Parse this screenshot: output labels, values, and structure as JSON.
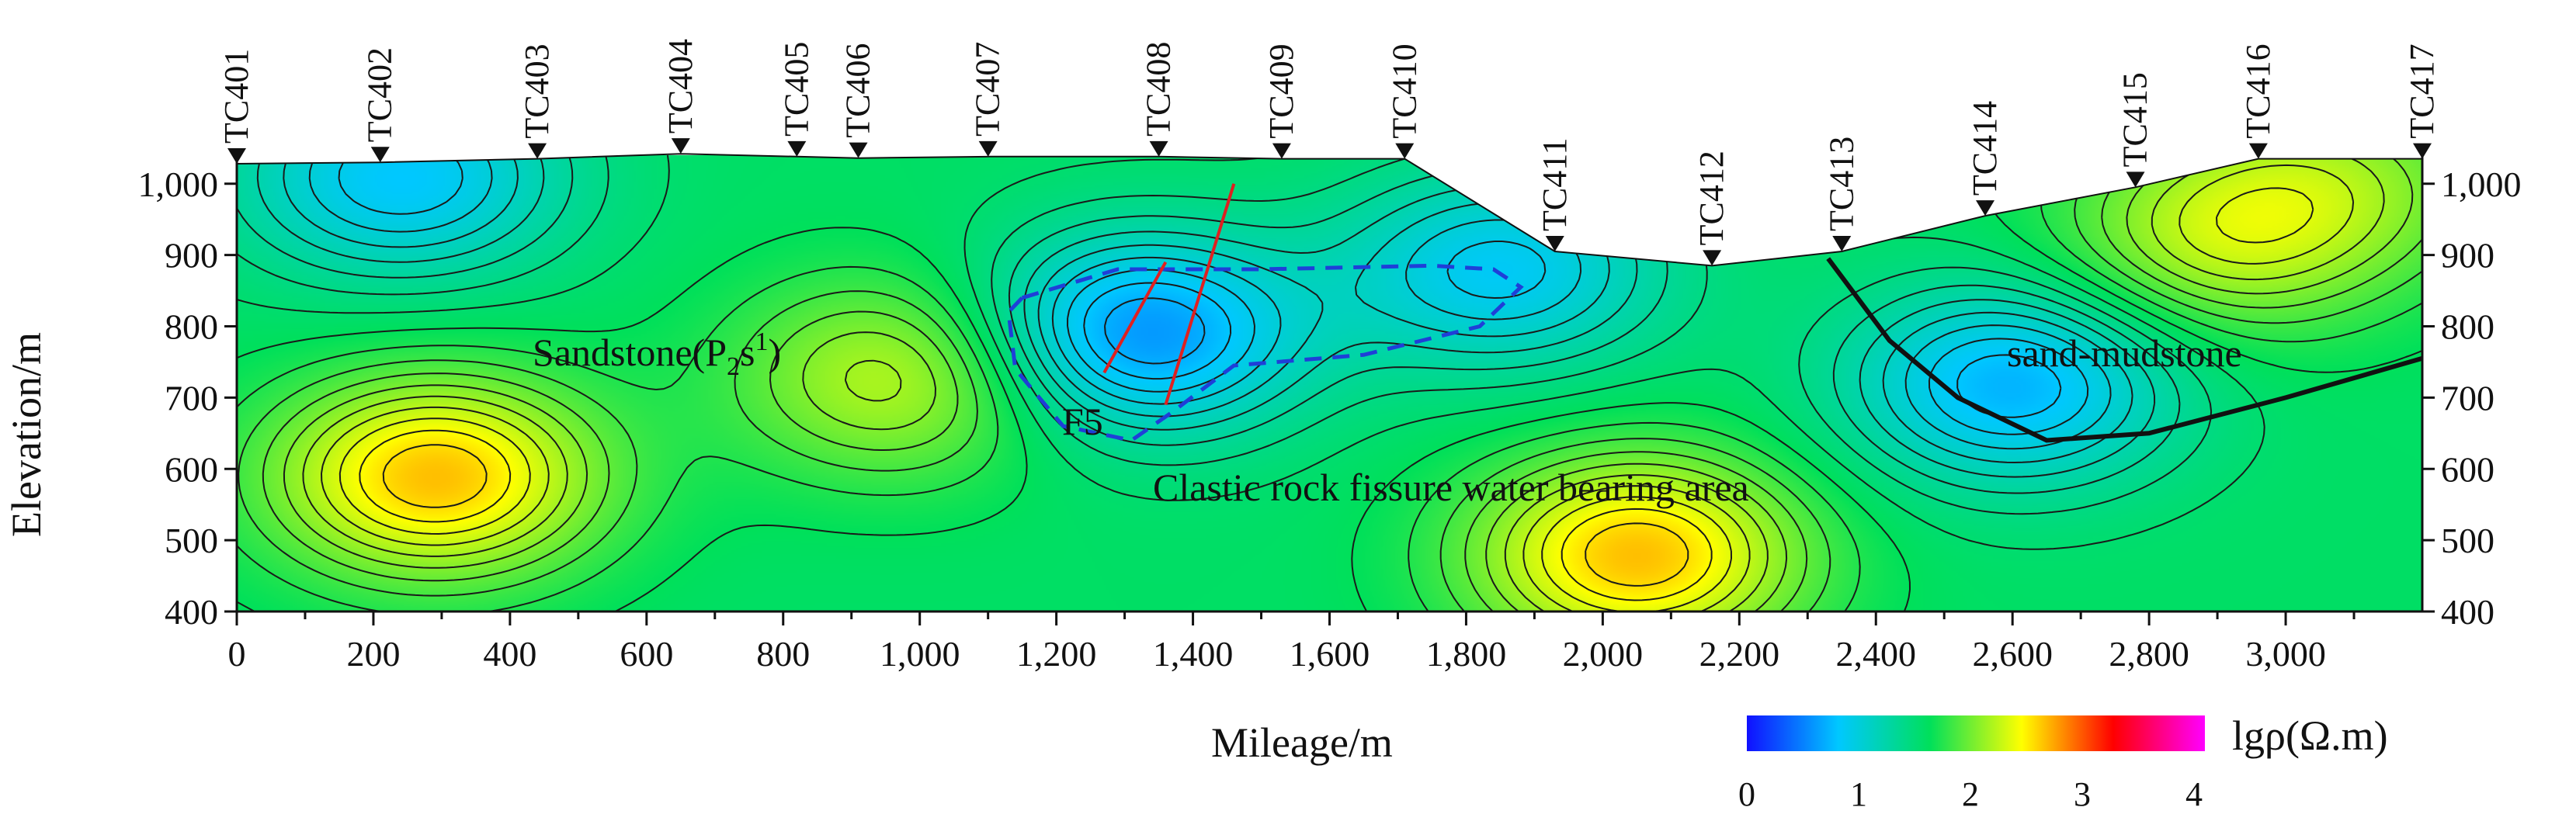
{
  "chart_data": {
    "type": "heatmap",
    "xlabel": "Mileage/m",
    "ylabel": "Elevation/m",
    "xlim": [
      0,
      3200
    ],
    "ylim": [
      400,
      1040
    ],
    "x_ticks": [
      0,
      200,
      400,
      600,
      800,
      1000,
      1200,
      1400,
      1600,
      1800,
      2000,
      2200,
      2400,
      2600,
      2800,
      3000
    ],
    "x_tick_labels": [
      "0",
      "200",
      "400",
      "600",
      "800",
      "1,000",
      "1,200",
      "1,400",
      "1,600",
      "1,800",
      "2,000",
      "2,200",
      "2,400",
      "2,600",
      "2,800",
      "3,000"
    ],
    "y_ticks": [
      400,
      500,
      600,
      700,
      800,
      900,
      1000
    ],
    "y_tick_labels": [
      "400",
      "500",
      "600",
      "700",
      "800",
      "900",
      "1,000"
    ],
    "stations": [
      {
        "name": "TC401",
        "x": 0,
        "elev": 1028
      },
      {
        "name": "TC402",
        "x": 210,
        "elev": 1030
      },
      {
        "name": "TC403",
        "x": 440,
        "elev": 1035
      },
      {
        "name": "TC404",
        "x": 650,
        "elev": 1042
      },
      {
        "name": "TC405",
        "x": 820,
        "elev": 1038
      },
      {
        "name": "TC406",
        "x": 910,
        "elev": 1036
      },
      {
        "name": "TC407",
        "x": 1100,
        "elev": 1038
      },
      {
        "name": "TC408",
        "x": 1350,
        "elev": 1038
      },
      {
        "name": "TC409",
        "x": 1530,
        "elev": 1035
      },
      {
        "name": "TC410",
        "x": 1710,
        "elev": 1035
      },
      {
        "name": "TC411",
        "x": 1930,
        "elev": 905
      },
      {
        "name": "TC412",
        "x": 2160,
        "elev": 885
      },
      {
        "name": "TC413",
        "x": 2350,
        "elev": 905
      },
      {
        "name": "TC414",
        "x": 2560,
        "elev": 955
      },
      {
        "name": "TC415",
        "x": 2780,
        "elev": 995
      },
      {
        "name": "TC416",
        "x": 2960,
        "elev": 1035
      },
      {
        "name": "TC417",
        "x": 3200,
        "elev": 1035
      }
    ],
    "resistivity_anomalies": [
      {
        "x": 290,
        "elev": 590,
        "lg_rho": 2.6
      },
      {
        "x": 2050,
        "elev": 480,
        "lg_rho": 2.6
      },
      {
        "x": 970,
        "elev": 730,
        "lg_rho": 2.2
      },
      {
        "x": 2890,
        "elev": 920,
        "lg_rho": 2.1
      },
      {
        "x": 3070,
        "elev": 1000,
        "lg_rho": 2.0
      },
      {
        "x": 1320,
        "elev": 790,
        "lg_rho": 0.55
      },
      {
        "x": 2600,
        "elev": 720,
        "lg_rho": 0.7
      },
      {
        "x": 1850,
        "elev": 880,
        "lg_rho": 0.85
      },
      {
        "x": 240,
        "elev": 1010,
        "lg_rho": 0.8
      }
    ],
    "colorbar": {
      "label": "lgρ(Ω.m)",
      "ticks": [
        "0",
        "1",
        "2",
        "3",
        "4"
      ],
      "colors": [
        "#1010ff",
        "#00c8ff",
        "#00e05a",
        "#ffff00",
        "#ff0000",
        "#ff00ff"
      ]
    },
    "annotations": {
      "sandstone_main": "Sandstone(P",
      "sandstone_sub": "2",
      "sandstone_s": "s",
      "sandstone_sup": "1",
      "sandstone_close": ")",
      "sand_mudstone": "sand-mudstone",
      "fault": "F5",
      "water_area": "Clastic rock fissure water bearing area"
    }
  }
}
